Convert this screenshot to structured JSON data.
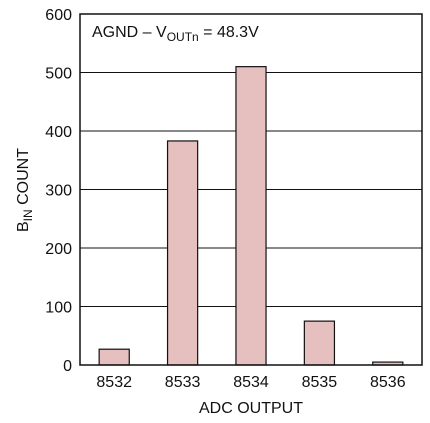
{
  "chart_data": {
    "type": "bar",
    "categories": [
      "8532",
      "8533",
      "8534",
      "8535",
      "8536"
    ],
    "values": [
      27,
      383,
      510,
      75,
      5
    ],
    "xlabel": "ADC OUTPUT",
    "ylabel": {
      "pre": "B",
      "sub": "IN",
      "post": " COUNT"
    },
    "ylim": [
      0,
      600
    ],
    "yticks": [
      0,
      100,
      200,
      300,
      400,
      500,
      600
    ],
    "grid": true,
    "annotation": {
      "pre": "AGND – V",
      "sub": "OUTn",
      "post": " = 48.3V"
    }
  },
  "colors": {
    "bar_fill": "#e6bfbf",
    "bar_stroke": "#111111",
    "grid": "#111111",
    "frame": "#111111"
  }
}
